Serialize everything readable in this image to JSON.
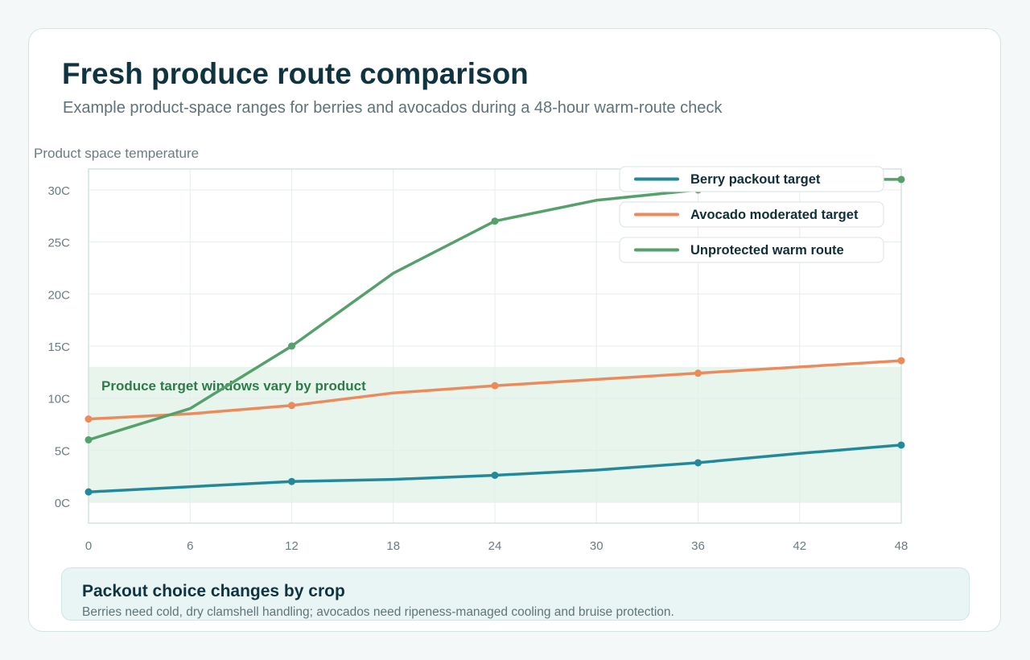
{
  "header": {
    "title": "Fresh produce route comparison",
    "subtitle": "Example product-space ranges for berries and avocados during a 48-hour warm-route check"
  },
  "chart_data": {
    "type": "line",
    "ylabel": "Product space temperature",
    "xlabel": "",
    "x_ticks": [
      0,
      6,
      12,
      18,
      24,
      30,
      36,
      42,
      48
    ],
    "y_ticks": [
      "0C",
      "5C",
      "10C",
      "15C",
      "20C",
      "25C",
      "30C"
    ],
    "y_tick_values": [
      0,
      5,
      10,
      15,
      20,
      25,
      30
    ],
    "xlim": [
      0,
      48
    ],
    "ylim": [
      -2,
      32
    ],
    "grid": true,
    "legend_position": "top-right",
    "band": {
      "y0": 0,
      "y1": 13,
      "label": "Produce target windows vary by product",
      "color": "#e7f5ec"
    },
    "series": [
      {
        "name": "Berry packout target",
        "color": "#22899a",
        "x": [
          0,
          6,
          12,
          18,
          24,
          30,
          36,
          42,
          48
        ],
        "y": [
          1,
          1.5,
          2,
          2.2,
          2.6,
          3.1,
          3.8,
          4.7,
          5.5
        ],
        "markers": [
          0,
          12,
          24,
          36,
          48
        ]
      },
      {
        "name": "Avocado moderated target",
        "color": "#ec8a5b",
        "x": [
          0,
          6,
          12,
          18,
          24,
          30,
          36,
          42,
          48
        ],
        "y": [
          8,
          8.5,
          9.3,
          10.5,
          11.2,
          11.8,
          12.4,
          13,
          13.6
        ],
        "markers": [
          0,
          12,
          24,
          36,
          48
        ]
      },
      {
        "name": "Unprotected warm route",
        "color": "#56a06b",
        "x": [
          0,
          6,
          12,
          18,
          24,
          30,
          36,
          42,
          48
        ],
        "y": [
          6,
          9,
          15,
          22,
          27,
          29,
          30,
          31,
          31
        ],
        "markers": [
          0,
          12,
          24,
          36,
          48
        ]
      }
    ]
  },
  "callout": {
    "title": "Packout choice changes by crop",
    "body": "Berries need cold, dry clamshell handling; avocados need ripeness-managed cooling and bruise protection."
  }
}
